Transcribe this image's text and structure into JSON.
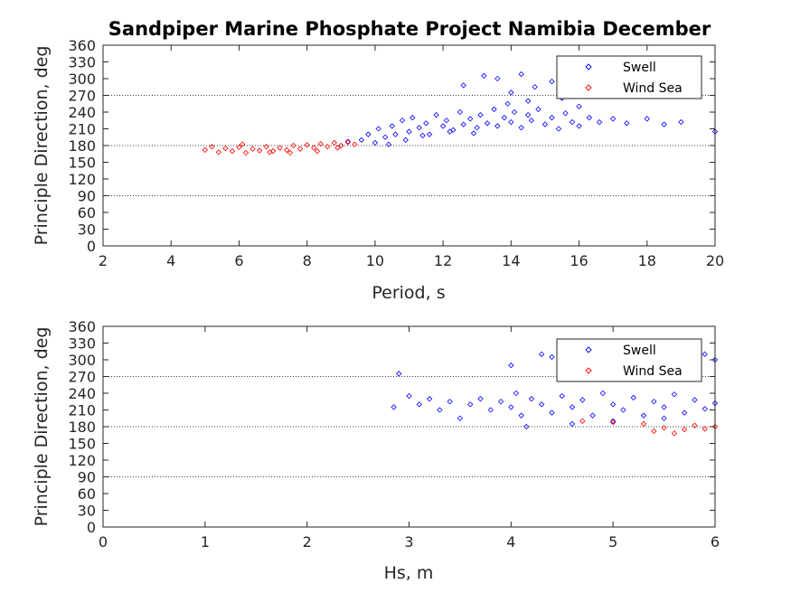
{
  "title": "Sandpiper Marine Phosphate Project Namibia December",
  "colors": {
    "swell": "#0000ff",
    "wind_sea": "#ff0000",
    "axis": "#262626",
    "background": "#ffffff"
  },
  "chart_data": [
    {
      "type": "scatter",
      "xlabel": "Period, s",
      "ylabel": "Principle Direction, deg",
      "xlim": [
        2,
        20
      ],
      "ylim": [
        0,
        360
      ],
      "xticks": [
        2,
        4,
        6,
        8,
        10,
        12,
        14,
        16,
        18,
        20
      ],
      "yticks": [
        0,
        30,
        60,
        90,
        120,
        150,
        180,
        210,
        240,
        270,
        300,
        330,
        360
      ],
      "reference_lines": [
        90,
        180,
        270
      ],
      "legend": "top-right",
      "marker": "diamond",
      "series": [
        {
          "name": "Swell",
          "color": "#0000ff",
          "points": [
            [
              9.6,
              190
            ],
            [
              9.8,
              200
            ],
            [
              10.0,
              185
            ],
            [
              10.1,
              210
            ],
            [
              10.3,
              195
            ],
            [
              10.5,
              215
            ],
            [
              10.6,
              200
            ],
            [
              10.8,
              225
            ],
            [
              11.0,
              205
            ],
            [
              11.1,
              230
            ],
            [
              11.3,
              212
            ],
            [
              11.5,
              220
            ],
            [
              11.6,
              200
            ],
            [
              11.8,
              235
            ],
            [
              12.0,
              215
            ],
            [
              12.1,
              225
            ],
            [
              12.3,
              208
            ],
            [
              12.5,
              240
            ],
            [
              12.6,
              218
            ],
            [
              12.8,
              228
            ],
            [
              13.0,
              212
            ],
            [
              13.1,
              235
            ],
            [
              13.3,
              220
            ],
            [
              13.5,
              245
            ],
            [
              13.6,
              215
            ],
            [
              13.8,
              230
            ],
            [
              14.0,
              222
            ],
            [
              14.1,
              240
            ],
            [
              14.3,
              212
            ],
            [
              14.5,
              235
            ],
            [
              14.6,
              225
            ],
            [
              14.8,
              245
            ],
            [
              15.0,
              218
            ],
            [
              15.2,
              230
            ],
            [
              15.4,
              210
            ],
            [
              15.6,
              238
            ],
            [
              15.8,
              222
            ],
            [
              16.0,
              215
            ],
            [
              16.3,
              230
            ],
            [
              16.6,
              222
            ],
            [
              17.0,
              228
            ],
            [
              17.4,
              220
            ],
            [
              18.0,
              228
            ],
            [
              18.5,
              218
            ],
            [
              19.0,
              222
            ],
            [
              20.0,
              205
            ],
            [
              12.6,
              288
            ],
            [
              13.2,
              305
            ],
            [
              13.6,
              300
            ],
            [
              14.0,
              275
            ],
            [
              14.3,
              308
            ],
            [
              14.5,
              260
            ],
            [
              14.7,
              285
            ],
            [
              15.2,
              295
            ],
            [
              15.5,
              265
            ],
            [
              16.0,
              250
            ],
            [
              13.9,
              255
            ],
            [
              10.9,
              190
            ],
            [
              11.4,
              198
            ],
            [
              12.2,
              205
            ],
            [
              12.9,
              202
            ],
            [
              9.2,
              187
            ],
            [
              10.4,
              182
            ]
          ]
        },
        {
          "name": "Wind Sea",
          "color": "#ff0000",
          "points": [
            [
              5.0,
              172
            ],
            [
              5.2,
              178
            ],
            [
              5.4,
              168
            ],
            [
              5.6,
              175
            ],
            [
              5.8,
              170
            ],
            [
              6.0,
              177
            ],
            [
              6.2,
              167
            ],
            [
              6.4,
              174
            ],
            [
              6.6,
              171
            ],
            [
              6.8,
              178
            ],
            [
              7.0,
              170
            ],
            [
              7.2,
              176
            ],
            [
              7.4,
              172
            ],
            [
              7.6,
              180
            ],
            [
              7.8,
              174
            ],
            [
              8.0,
              181
            ],
            [
              8.2,
              176
            ],
            [
              8.4,
              183
            ],
            [
              8.6,
              178
            ],
            [
              8.8,
              185
            ],
            [
              9.0,
              180
            ],
            [
              9.2,
              186
            ],
            [
              9.4,
              182
            ],
            [
              6.1,
              182
            ],
            [
              6.9,
              168
            ],
            [
              7.5,
              167
            ],
            [
              8.3,
              170
            ],
            [
              8.9,
              176
            ]
          ]
        }
      ]
    },
    {
      "type": "scatter",
      "xlabel": "Hs, m",
      "ylabel": "Principle Direction, deg",
      "xlim": [
        0,
        6
      ],
      "ylim": [
        0,
        360
      ],
      "xticks": [
        0,
        1,
        2,
        3,
        4,
        5,
        6
      ],
      "yticks": [
        0,
        30,
        60,
        90,
        120,
        150,
        180,
        210,
        240,
        270,
        300,
        330,
        360
      ],
      "reference_lines": [
        90,
        180,
        270
      ],
      "legend": "top-right",
      "marker": "diamond",
      "series": [
        {
          "name": "Swell",
          "color": "#0000ff",
          "points": [
            [
              2.85,
              215
            ],
            [
              2.9,
              275
            ],
            [
              3.0,
              235
            ],
            [
              3.1,
              220
            ],
            [
              3.2,
              230
            ],
            [
              3.3,
              210
            ],
            [
              3.4,
              225
            ],
            [
              3.5,
              195
            ],
            [
              3.6,
              220
            ],
            [
              3.7,
              230
            ],
            [
              3.8,
              210
            ],
            [
              3.9,
              225
            ],
            [
              4.0,
              215
            ],
            [
              4.05,
              240
            ],
            [
              4.1,
              200
            ],
            [
              4.2,
              230
            ],
            [
              4.3,
              220
            ],
            [
              4.4,
              205
            ],
            [
              4.5,
              235
            ],
            [
              4.6,
              215
            ],
            [
              4.7,
              228
            ],
            [
              4.8,
              200
            ],
            [
              4.9,
              240
            ],
            [
              5.0,
              220
            ],
            [
              5.1,
              210
            ],
            [
              5.2,
              232
            ],
            [
              5.3,
              200
            ],
            [
              5.4,
              225
            ],
            [
              5.5,
              215
            ],
            [
              5.6,
              238
            ],
            [
              5.7,
              205
            ],
            [
              5.8,
              228
            ],
            [
              5.9,
              212
            ],
            [
              6.0,
              222
            ],
            [
              4.3,
              310
            ],
            [
              4.4,
              305
            ],
            [
              4.0,
              290
            ],
            [
              5.8,
              270
            ],
            [
              5.9,
              310
            ],
            [
              6.0,
              300
            ],
            [
              4.15,
              180
            ],
            [
              4.6,
              185
            ],
            [
              5.0,
              190
            ],
            [
              5.5,
              195
            ]
          ]
        },
        {
          "name": "Wind Sea",
          "color": "#ff0000",
          "points": [
            [
              5.4,
              172
            ],
            [
              5.5,
              178
            ],
            [
              5.6,
              168
            ],
            [
              5.7,
              175
            ],
            [
              5.8,
              182
            ],
            [
              5.9,
              176
            ],
            [
              6.0,
              180
            ],
            [
              5.3,
              185
            ],
            [
              5.0,
              188
            ],
            [
              4.7,
              190
            ]
          ]
        }
      ]
    }
  ]
}
